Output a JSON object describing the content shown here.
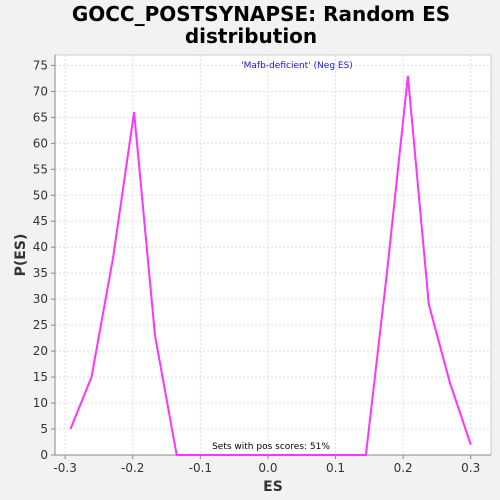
{
  "chart_data": {
    "type": "line",
    "title_line1": "GOCC_POSTSYNAPSE: Random ES",
    "title_line2": "distribution",
    "xlabel": "ES",
    "ylabel": "P(ES)",
    "xlim": [
      -0.315,
      0.33
    ],
    "ylim": [
      0,
      77
    ],
    "x_ticks": [
      -0.3,
      -0.2,
      -0.1,
      0.0,
      0.1,
      0.2,
      0.3
    ],
    "x_tick_labels": [
      "-0.3",
      "-0.2",
      "-0.1",
      "0.0",
      "0.1",
      "0.2",
      "0.3"
    ],
    "y_ticks": [
      0,
      5,
      10,
      15,
      20,
      25,
      30,
      35,
      40,
      45,
      50,
      55,
      60,
      65,
      70,
      75
    ],
    "y_tick_labels": [
      "0",
      "5",
      "10",
      "15",
      "20",
      "25",
      "30",
      "35",
      "40",
      "45",
      "50",
      "55",
      "60",
      "65",
      "70",
      "75"
    ],
    "grid": true,
    "legend_position": "top-center",
    "series": [
      {
        "name": "'Mafb-deficient' (Neg ES)",
        "color": "#ff33ff",
        "x": [
          -0.292,
          -0.261,
          -0.229,
          -0.198,
          -0.167,
          -0.135,
          0.145,
          0.176,
          0.207,
          0.238,
          0.269,
          0.3
        ],
        "y": [
          5,
          15,
          38,
          66,
          23,
          0,
          0,
          35,
          73,
          29,
          14,
          2
        ]
      }
    ],
    "annotation": "Sets with pos scores: 51%",
    "colors": {
      "page_background": "#f2f2f2",
      "plot_background": "#ffffff",
      "grid": "#dddddd",
      "legend_text": "#1a1acc"
    }
  }
}
